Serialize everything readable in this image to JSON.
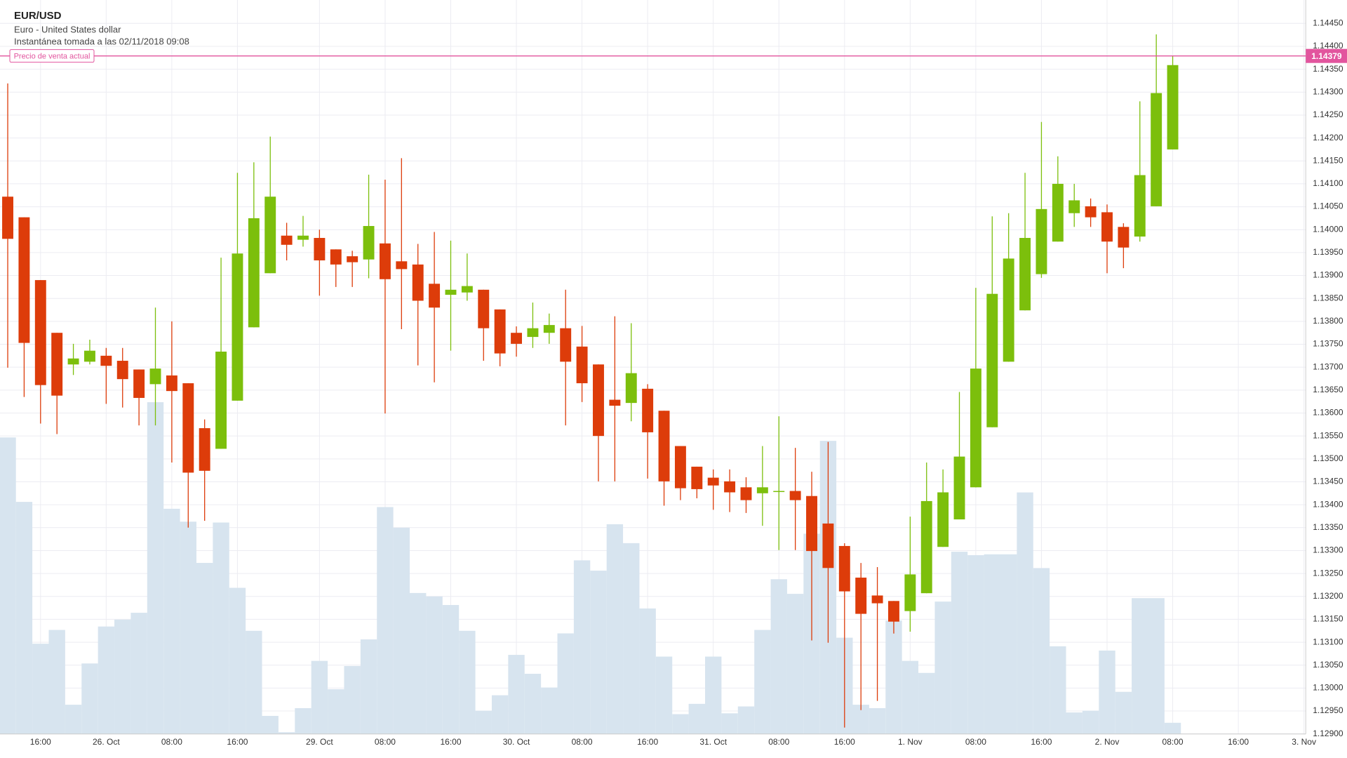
{
  "chart_data": {
    "type": "candlestick",
    "title": "EUR/USD",
    "subtitle": "Euro - United States dollar",
    "note": "Instantánea tomada a las 02/11/2018 09:08",
    "categories": [
      null,
      null,
      "16:00",
      null,
      null,
      null,
      "26. Oct",
      null,
      null,
      null,
      "08:00",
      null,
      null,
      null,
      "16:00",
      null,
      null,
      null,
      null,
      "29. Oct",
      null,
      null,
      null,
      "08:00",
      null,
      null,
      null,
      "16:00",
      null,
      null,
      null,
      "30. Oct",
      null,
      null,
      null,
      "08:00",
      null,
      null,
      null,
      "16:00",
      null,
      null,
      null,
      "31. Oct",
      null,
      null,
      null,
      "08:00",
      null,
      null,
      null,
      "16:00",
      null,
      null,
      null,
      "1. Nov",
      null,
      null,
      null,
      "08:00",
      null,
      null,
      null,
      "16:00",
      null,
      null,
      null,
      "2. Nov",
      null,
      null,
      null,
      "08:00",
      null,
      null,
      null,
      "16:00",
      null,
      null,
      null,
      "3. Nov"
    ],
    "open": [
      1.14072,
      1.14027,
      1.1389,
      1.13775,
      1.13706,
      1.13712,
      1.13725,
      1.13714,
      1.13695,
      1.13663,
      1.13682,
      1.13665,
      1.13567,
      1.13522,
      1.13627,
      1.13787,
      1.13905,
      1.13987,
      1.13978,
      1.13982,
      1.13957,
      1.13942,
      1.13935,
      1.1397,
      1.13931,
      1.13924,
      1.13882,
      1.13858,
      1.13863,
      1.13869,
      1.13826,
      1.13775,
      1.13766,
      1.13775,
      1.13785,
      1.13745,
      1.13706,
      1.13629,
      1.13622,
      1.13653,
      1.13605,
      1.13528,
      1.13483,
      1.13459,
      1.13451,
      1.13438,
      1.13425,
      1.1343,
      1.1343,
      1.13419,
      1.13359,
      1.1331,
      1.13241,
      1.13202,
      1.1319,
      1.13168,
      1.13207,
      1.13308,
      1.13368,
      1.13438,
      1.13569,
      1.13712,
      1.13824,
      1.13903,
      1.13974,
      1.14036,
      1.14051,
      1.14038,
      1.14006,
      1.13985,
      1.14051,
      1.14175,
      null,
      null,
      null,
      null,
      null,
      null,
      null,
      null
    ],
    "high": [
      1.14319,
      1.14027,
      1.1389,
      1.13775,
      1.13751,
      1.1376,
      1.13742,
      1.13742,
      1.13695,
      1.1383,
      1.138,
      1.13665,
      1.13586,
      1.13939,
      1.14124,
      1.14147,
      1.14203,
      1.14015,
      1.1403,
      1.14,
      1.13957,
      1.13954,
      1.1412,
      1.14109,
      1.14156,
      1.13969,
      1.13995,
      1.13976,
      1.13948,
      1.13869,
      1.13826,
      1.13789,
      1.13841,
      1.13817,
      1.13869,
      1.1379,
      1.13706,
      1.13811,
      1.13796,
      1.13663,
      1.13605,
      1.13528,
      1.13483,
      1.13477,
      1.13477,
      1.1346,
      1.13528,
      1.13593,
      1.13524,
      1.13472,
      1.13537,
      1.13316,
      1.13273,
      1.13264,
      1.1319,
      1.13374,
      1.13492,
      1.13477,
      1.13646,
      1.13873,
      1.14029,
      1.14036,
      1.14124,
      1.14235,
      1.1416,
      1.141,
      1.14068,
      1.14055,
      1.14014,
      1.1428,
      1.14426,
      1.14379,
      null,
      null,
      null,
      null,
      null,
      null,
      null,
      null
    ],
    "low": [
      1.13699,
      1.13635,
      1.13577,
      1.13554,
      1.13683,
      1.13706,
      1.1362,
      1.13612,
      1.13573,
      1.13573,
      1.13492,
      1.1335,
      1.13365,
      1.13522,
      1.13627,
      1.13787,
      1.13905,
      1.13933,
      1.13963,
      1.13856,
      1.13875,
      1.13875,
      1.13894,
      1.13599,
      1.13783,
      1.13704,
      1.13667,
      1.13736,
      1.13845,
      1.13714,
      1.13702,
      1.13723,
      1.13742,
      1.13751,
      1.13573,
      1.13624,
      1.13451,
      1.13451,
      1.13582,
      1.13457,
      1.13398,
      1.1341,
      1.13414,
      1.13389,
      1.13384,
      1.13382,
      1.13354,
      1.13301,
      1.13301,
      1.13104,
      1.13099,
      1.12914,
      1.12952,
      1.12972,
      1.13119,
      1.13123,
      1.13207,
      1.13308,
      1.13368,
      1.13438,
      1.13569,
      1.13712,
      1.13824,
      1.13895,
      1.13974,
      1.14006,
      1.14006,
      1.13905,
      1.13916,
      1.13974,
      1.14051,
      1.14175,
      null,
      null,
      null,
      null,
      null,
      null,
      null,
      null
    ],
    "close": [
      1.1398,
      1.13753,
      1.13661,
      1.13638,
      1.13719,
      1.13736,
      1.13703,
      1.13674,
      1.13633,
      1.13697,
      1.13648,
      1.1347,
      1.13474,
      1.13734,
      1.13948,
      1.14025,
      1.14072,
      1.13967,
      1.13987,
      1.13933,
      1.13924,
      1.13929,
      1.14008,
      1.13892,
      1.13914,
      1.13845,
      1.1383,
      1.13869,
      1.13877,
      1.13785,
      1.1373,
      1.13751,
      1.13785,
      1.13792,
      1.13712,
      1.13665,
      1.1355,
      1.13616,
      1.13687,
      1.13558,
      1.13451,
      1.13436,
      1.13434,
      1.13442,
      1.13427,
      1.1341,
      1.13438,
      1.1343,
      1.1341,
      1.13299,
      1.13262,
      1.13211,
      1.13162,
      1.13185,
      1.13145,
      1.13248,
      1.13408,
      1.13427,
      1.13505,
      1.13697,
      1.1386,
      1.13937,
      1.13982,
      1.14045,
      1.141,
      1.14064,
      1.14027,
      1.13974,
      1.13961,
      1.14119,
      1.14298,
      1.14359,
      null,
      null,
      null,
      null,
      null,
      null,
      null,
      null
    ],
    "volume": [
      345,
      270,
      105,
      121,
      34,
      82,
      125,
      133,
      141,
      386,
      262,
      247,
      199,
      246,
      170,
      120,
      21,
      2,
      30,
      85,
      52,
      79,
      110,
      264,
      240,
      164,
      160,
      150,
      120,
      27,
      45,
      92,
      70,
      54,
      117,
      202,
      190,
      244,
      222,
      146,
      90,
      23,
      35,
      90,
      24,
      32,
      121,
      180,
      163,
      233,
      341,
      112,
      34,
      30,
      132,
      85,
      71,
      154,
      212,
      208,
      209,
      209,
      281,
      193,
      102,
      25,
      27,
      97,
      49,
      158,
      158,
      13,
      null,
      null,
      null,
      null,
      null,
      null,
      null,
      null
    ],
    "up_color": "#7cbf0c",
    "down_color": "#dd3c0a",
    "volume_color": "#d7e4ef",
    "current_price": {
      "label": "Precio de venta actual",
      "value": 1.14379,
      "value_label": "1.14379",
      "color": "#e2559e"
    },
    "ylim": [
      1.129,
      1.14501
    ],
    "yticks": [
      {
        "value": 1.129,
        "label": "1.12900"
      },
      {
        "value": 1.1295,
        "label": "1.12950"
      },
      {
        "value": 1.13,
        "label": "1.13000"
      },
      {
        "value": 1.1305,
        "label": "1.13050"
      },
      {
        "value": 1.131,
        "label": "1.13100"
      },
      {
        "value": 1.1315,
        "label": "1.13150"
      },
      {
        "value": 1.132,
        "label": "1.13200"
      },
      {
        "value": 1.1325,
        "label": "1.13250"
      },
      {
        "value": 1.133,
        "label": "1.13300"
      },
      {
        "value": 1.1335,
        "label": "1.13350"
      },
      {
        "value": 1.134,
        "label": "1.13400"
      },
      {
        "value": 1.1345,
        "label": "1.13450"
      },
      {
        "value": 1.135,
        "label": "1.13500"
      },
      {
        "value": 1.1355,
        "label": "1.13550"
      },
      {
        "value": 1.136,
        "label": "1.13600"
      },
      {
        "value": 1.1365,
        "label": "1.13650"
      },
      {
        "value": 1.137,
        "label": "1.13700"
      },
      {
        "value": 1.1375,
        "label": "1.13750"
      },
      {
        "value": 1.138,
        "label": "1.13800"
      },
      {
        "value": 1.1385,
        "label": "1.13850"
      },
      {
        "value": 1.139,
        "label": "1.13900"
      },
      {
        "value": 1.1395,
        "label": "1.13950"
      },
      {
        "value": 1.14,
        "label": "1.14000"
      },
      {
        "value": 1.1405,
        "label": "1.14050"
      },
      {
        "value": 1.141,
        "label": "1.14100"
      },
      {
        "value": 1.1415,
        "label": "1.14150"
      },
      {
        "value": 1.142,
        "label": "1.14200"
      },
      {
        "value": 1.1425,
        "label": "1.14250"
      },
      {
        "value": 1.143,
        "label": "1.14300"
      },
      {
        "value": 1.1435,
        "label": "1.14350"
      },
      {
        "value": 1.144,
        "label": "1.14400"
      },
      {
        "value": 1.1445,
        "label": "1.14450"
      }
    ],
    "grid": true
  }
}
